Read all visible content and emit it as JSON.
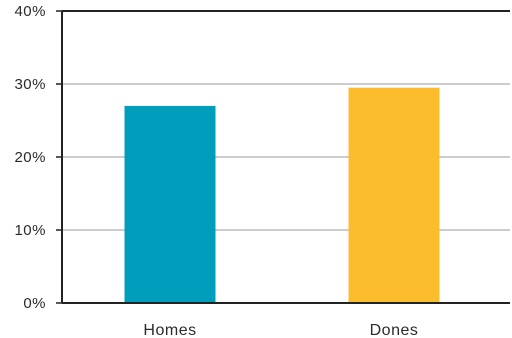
{
  "chart_data": {
    "type": "bar",
    "categories": [
      "Homes",
      "Dones"
    ],
    "values": [
      27,
      29.5
    ],
    "colors": [
      "#009ebd",
      "#fbbd2c"
    ],
    "ylim": [
      0,
      40
    ],
    "yticks": [
      0,
      10,
      20,
      30,
      40
    ],
    "ytick_labels": [
      "0%",
      "10%",
      "20%",
      "30%",
      "40%"
    ],
    "title": "",
    "xlabel": "",
    "ylabel": "",
    "grid": true,
    "legend": false
  }
}
